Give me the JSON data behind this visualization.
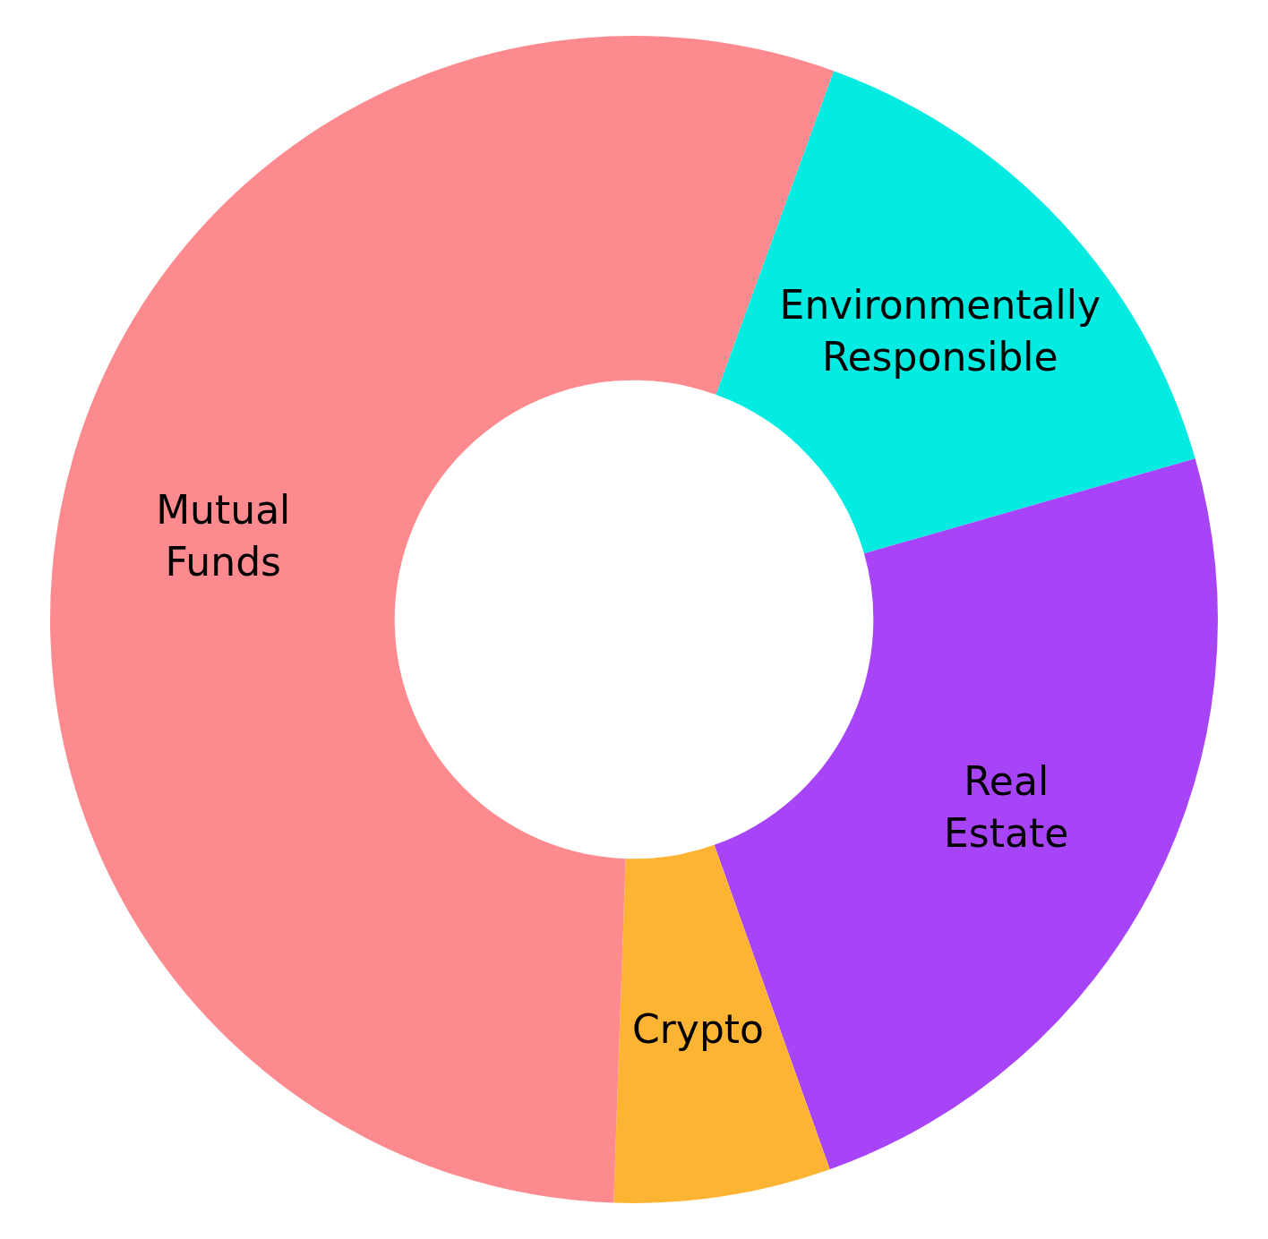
{
  "chart_data": {
    "type": "donut",
    "categories": [
      "Environmentally Responsible",
      "Real Estate",
      "Crypto",
      "Mutual Funds"
    ],
    "values": [
      15,
      24,
      6,
      55
    ],
    "colors": [
      "#04ebe2",
      "#a844f7",
      "#fdb433",
      "#fd8a8e"
    ],
    "legend": false
  }
}
